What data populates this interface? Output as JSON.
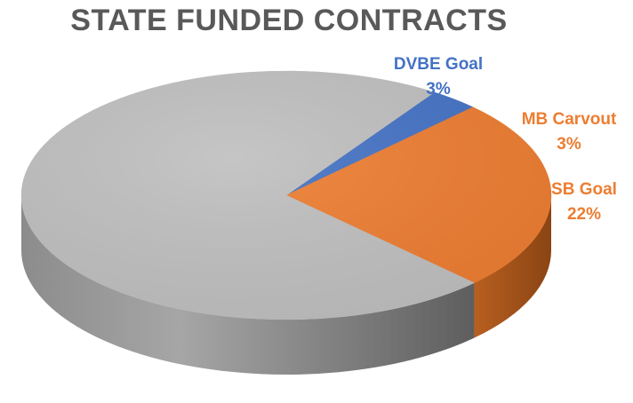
{
  "chart_data": {
    "type": "pie",
    "style": "3d",
    "title": "STATE FUNDED CONTRACTS",
    "slices": [
      {
        "name": "DVBE Goal",
        "value": 3,
        "label": "3%",
        "color": "#4472C4",
        "side_color": "#2F528F"
      },
      {
        "name": "MB Carvout",
        "value": 3,
        "label": "3%",
        "color": "#ED7D31",
        "side_color": "#A9561C"
      },
      {
        "name": "SB Goal",
        "value": 22,
        "label": "22%",
        "color": "#ED7D31",
        "side_color": "#A9561C"
      },
      {
        "name": "",
        "value": 72,
        "label": "",
        "color": "#BFBFBF",
        "side_color": "#7F7F7F"
      }
    ],
    "legend": "none"
  }
}
